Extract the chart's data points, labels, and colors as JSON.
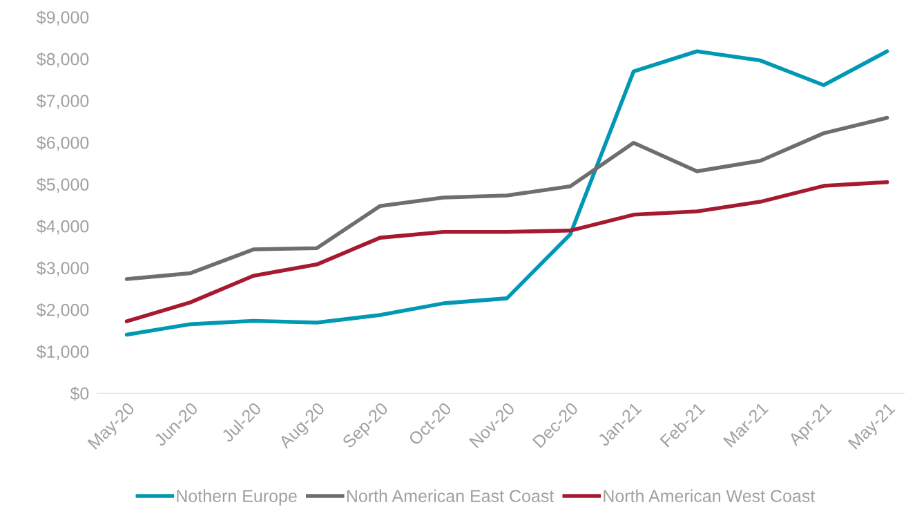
{
  "chart_data": {
    "type": "line",
    "categories": [
      "May-20",
      "Jun-20",
      "Jul-20",
      "Aug-20",
      "Sep-20",
      "Oct-20",
      "Nov-20",
      "Dec-20",
      "Jan-21",
      "Feb-21",
      "Mar-21",
      "Apr-21",
      "May-21"
    ],
    "series": [
      {
        "name": "Nothern Europe",
        "color": "#0098b3",
        "values": [
          1400,
          1650,
          1730,
          1690,
          1870,
          2150,
          2270,
          3800,
          7700,
          8180,
          7960,
          7370,
          8180
        ]
      },
      {
        "name": "North American East Coast",
        "color": "#6d6e70",
        "values": [
          2730,
          2870,
          3440,
          3470,
          4480,
          4680,
          4730,
          4950,
          5990,
          5310,
          5560,
          6220,
          6590
        ]
      },
      {
        "name": "North American West Coast",
        "color": "#a6192e",
        "values": [
          1720,
          2170,
          2810,
          3080,
          3720,
          3860,
          3860,
          3890,
          4270,
          4350,
          4580,
          4960,
          5050
        ]
      }
    ],
    "ylim": [
      0,
      9000
    ],
    "yticks": [
      {
        "value": 0,
        "label": "$0"
      },
      {
        "value": 1000,
        "label": "$1,000"
      },
      {
        "value": 2000,
        "label": "$2,000"
      },
      {
        "value": 3000,
        "label": "$3,000"
      },
      {
        "value": 4000,
        "label": "$4,000"
      },
      {
        "value": 5000,
        "label": "$5,000"
      },
      {
        "value": 6000,
        "label": "$6,000"
      },
      {
        "value": 7000,
        "label": "$7,000"
      },
      {
        "value": 8000,
        "label": "$8,000"
      },
      {
        "value": 9000,
        "label": "$9,000"
      }
    ],
    "grid": false,
    "legend": "bottom",
    "marker": "none",
    "line_style": "solid"
  }
}
